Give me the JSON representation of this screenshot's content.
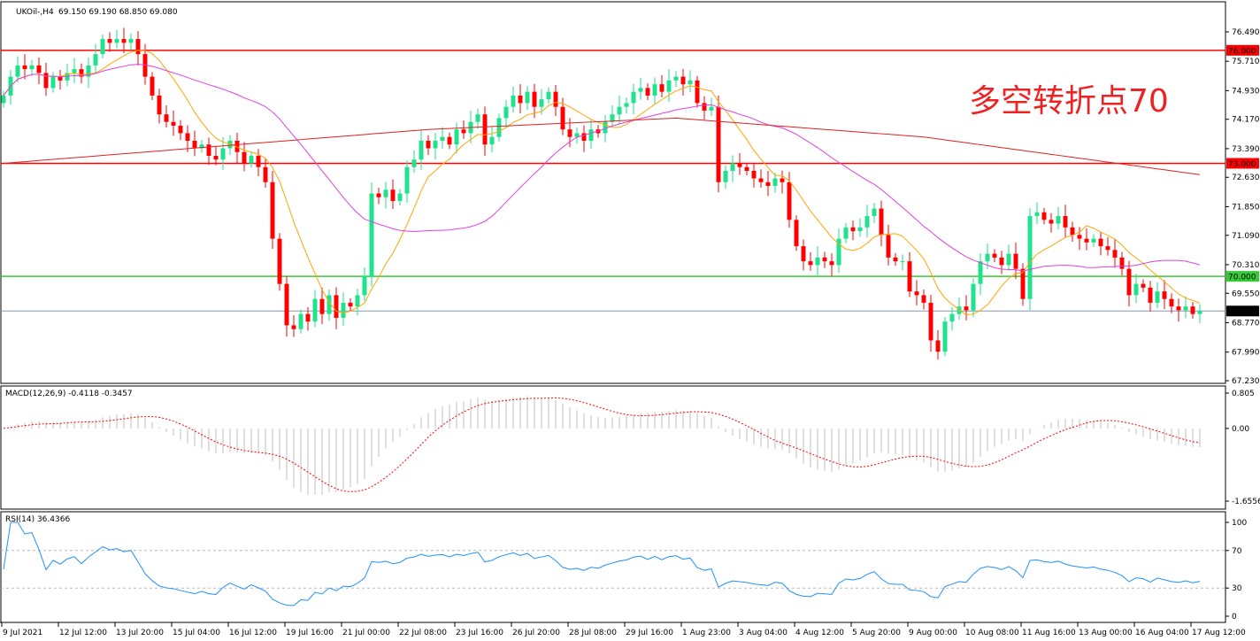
{
  "header": {
    "symbol": "UKOil-,H4",
    "ohlc": "69.150 69.190 68.850 69.080"
  },
  "annotation": "多空转折点70",
  "colors": {
    "bull": "#1ee38c",
    "bear": "#ff0000",
    "ma_fast": "#ffa500",
    "ma_mid": "#e040e0",
    "ma_long": "#e02020",
    "level_red": "#ff0000",
    "level_green": "#33cc33",
    "current": "#8899aa",
    "macd_hist": "#c0c0c0",
    "macd_signal": "#ff0000",
    "rsi": "#1e90ff"
  },
  "chart_data": [
    {
      "type": "candlestick",
      "title": "UKOil-,H4",
      "ylim": [
        67.23,
        76.49
      ],
      "y_ticks": [
        "76.490",
        "75.710",
        "74.930",
        "74.170",
        "73.390",
        "72.630",
        "71.850",
        "71.090",
        "70.310",
        "69.550",
        "68.770",
        "67.990",
        "67.230"
      ],
      "x_ticks": [
        "9 Jul 2021",
        "12 Jul 12:00",
        "13 Jul 20:00",
        "15 Jul 04:00",
        "16 Jul 12:00",
        "19 Jul 16:00",
        "21 Jul 00:00",
        "22 Jul 08:00",
        "23 Jul 16:00",
        "26 Jul 20:00",
        "28 Jul 08:00",
        "29 Jul 16:00",
        "1 Aug 23:00",
        "3 Aug 04:00",
        "4 Aug 12:00",
        "5 Aug 20:00",
        "9 Aug 00:00",
        "10 Aug 08:00",
        "11 Aug 16:00",
        "13 Aug 00:00",
        "16 Aug 04:00",
        "17 Aug 12:00"
      ],
      "closes": [
        74.8,
        75.3,
        75.6,
        75.5,
        75.6,
        75.4,
        75.0,
        75.3,
        75.2,
        75.4,
        75.5,
        75.3,
        75.6,
        75.9,
        76.3,
        76.2,
        76.3,
        76.2,
        76.3,
        75.9,
        75.3,
        74.8,
        74.3,
        74.1,
        74.0,
        73.8,
        73.6,
        73.4,
        73.5,
        73.2,
        73.1,
        73.4,
        73.6,
        73.3,
        73.0,
        73.2,
        72.9,
        72.5,
        71.0,
        69.8,
        68.7,
        68.6,
        69.0,
        68.8,
        69.4,
        69.0,
        69.5,
        68.9,
        69.3,
        69.2,
        69.5,
        70.0,
        72.2,
        72.1,
        72.3,
        72.0,
        72.2,
        72.9,
        73.1,
        73.6,
        73.4,
        73.6,
        73.7,
        73.5,
        73.9,
        73.8,
        74.1,
        74.3,
        73.5,
        73.7,
        74.2,
        74.5,
        74.8,
        74.6,
        74.9,
        74.5,
        74.7,
        74.9,
        74.5,
        73.9,
        73.7,
        73.8,
        73.6,
        73.9,
        73.8,
        74.1,
        74.3,
        74.5,
        74.6,
        74.9,
        75.0,
        74.8,
        75.1,
        74.9,
        75.2,
        75.3,
        75.1,
        75.2,
        74.6,
        74.4,
        74.5,
        72.5,
        72.8,
        73.0,
        72.9,
        72.8,
        72.6,
        72.5,
        72.4,
        72.6,
        72.5,
        71.5,
        70.8,
        70.4,
        70.3,
        70.5,
        70.4,
        70.3,
        71.0,
        71.3,
        71.2,
        71.3,
        71.6,
        71.8,
        71.1,
        70.5,
        70.4,
        70.4,
        69.6,
        69.5,
        69.3,
        68.3,
        68.0,
        68.8,
        69.0,
        69.2,
        69.1,
        69.8,
        70.4,
        70.6,
        70.5,
        70.3,
        70.6,
        70.2,
        69.4,
        71.6,
        71.7,
        71.5,
        71.4,
        71.6,
        71.3,
        71.1,
        71.0,
        70.9,
        71.0,
        70.8,
        70.7,
        70.5,
        70.2,
        69.5,
        69.8,
        69.7,
        69.3,
        69.6,
        69.4,
        69.2,
        69.1,
        69.2,
        69.0,
        69.08
      ],
      "ma_long_points": [
        [
          0,
          73.0
        ],
        [
          60,
          73.9
        ],
        [
          95,
          74.2
        ],
        [
          130,
          73.7
        ],
        [
          169,
          72.7
        ]
      ],
      "levels": [
        {
          "value": 76.0,
          "label": "76.000",
          "color": "#ff0000"
        },
        {
          "value": 73.0,
          "label": "73.000",
          "color": "#ff0000"
        },
        {
          "value": 70.0,
          "label": "70.000",
          "color": "#33cc33"
        },
        {
          "value": 69.08,
          "label": "69.080",
          "color": "#000000"
        }
      ]
    },
    {
      "type": "bar+line",
      "title": "MACD(12,26,9) -0.4118 -0.3457",
      "ylim": [
        -1.6556,
        0.805
      ],
      "y_ticks": [
        "0.805",
        "0.00",
        "-1.6556"
      ]
    },
    {
      "type": "line",
      "title": "RSI(14) 36.4366",
      "ylim": [
        0,
        100
      ],
      "y_ticks": [
        "100",
        "70",
        "30",
        "0"
      ],
      "levels": [
        70,
        30
      ]
    }
  ]
}
